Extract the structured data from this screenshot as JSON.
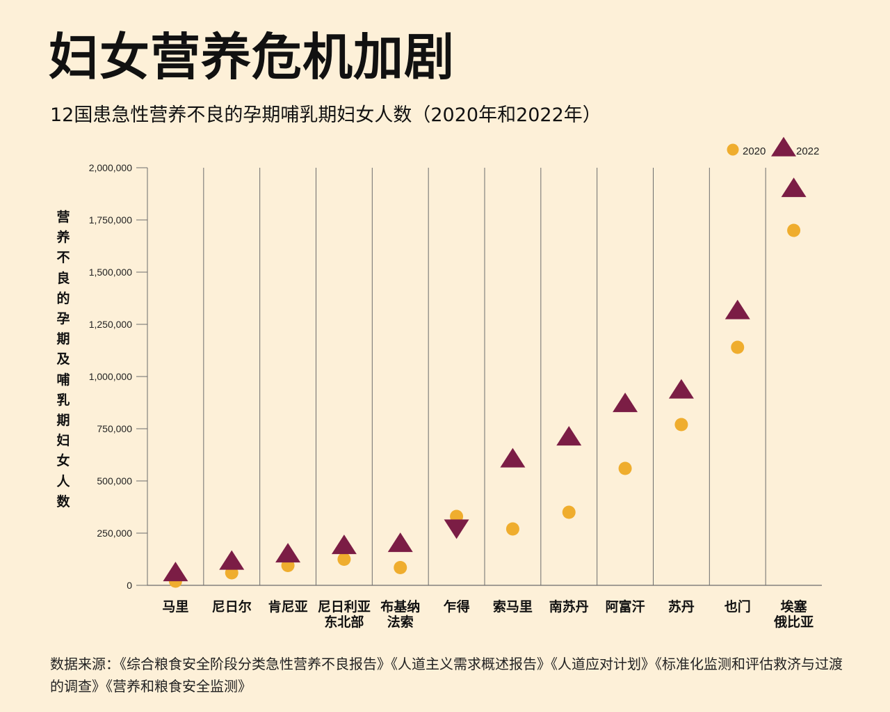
{
  "title": "妇女营养危机加剧",
  "subtitle": "12国患急性营养不良的孕期哺乳期妇女人数（2020年和2022年）",
  "source": "数据来源：《综合粮食安全阶段分类急性营养不良报告》《人道主义需求概述报告》《人道应对计划》《标准化监测和评估救济与过渡的调查》《营养和粮食安全监测》",
  "colors": {
    "background": "#fdf0d8",
    "series_2020": "#efad2e",
    "series_2022": "#7b1d45",
    "grid": "#6b6b6b"
  },
  "chart_data": {
    "type": "scatter",
    "title": "妇女营养危机加剧",
    "subtitle": "12国患急性营养不良的孕期哺乳期妇女人数（2020年和2022年）",
    "xlabel": "",
    "ylabel": "营养不良的孕期及哺乳期妇女人数",
    "ylim": [
      0,
      2000000
    ],
    "yticks": [
      0,
      250000,
      500000,
      750000,
      1000000,
      1250000,
      1500000,
      1750000,
      2000000
    ],
    "ytick_labels": [
      "0",
      "250,000",
      "500,000",
      "750,000",
      "1,000,000",
      "1,250,000",
      "1,500,000",
      "1,750,000",
      "2,000,000"
    ],
    "categories": [
      [
        "马里"
      ],
      [
        "尼日尔"
      ],
      [
        "肯尼亚"
      ],
      [
        "尼日利亚",
        "东北部"
      ],
      [
        "布基纳",
        "法索"
      ],
      [
        "乍得"
      ],
      [
        "索马里"
      ],
      [
        "南苏丹"
      ],
      [
        "阿富汗"
      ],
      [
        "苏丹"
      ],
      [
        "也门"
      ],
      [
        "埃塞",
        "俄比亚"
      ]
    ],
    "legend_position": "top-right",
    "series": [
      {
        "name": "2020",
        "marker": "circle",
        "values": [
          20000,
          60000,
          95000,
          125000,
          85000,
          330000,
          270000,
          350000,
          560000,
          770000,
          1140000,
          1700000
        ]
      },
      {
        "name": "2022",
        "marker": "triangle",
        "values": [
          55000,
          110000,
          145000,
          185000,
          195000,
          280000,
          600000,
          705000,
          865000,
          930000,
          1310000,
          1895000
        ]
      }
    ]
  }
}
